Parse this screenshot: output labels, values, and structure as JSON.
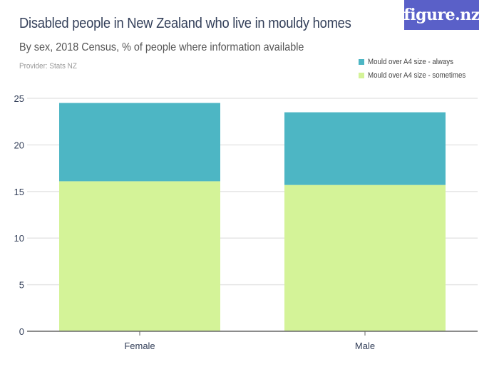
{
  "header": {
    "title": "Disabled people in New Zealand who live in mouldy homes",
    "subtitle": "By sex, 2018 Census, % of people where information available",
    "provider": "Provider: Stats NZ",
    "logo": "figure.nz"
  },
  "legend": [
    {
      "label": "Mould over A4 size - always",
      "color": "#4db6c4"
    },
    {
      "label": "Mould over A4 size - sometimes",
      "color": "#d4f398"
    }
  ],
  "colors": {
    "always": "#4db6c4",
    "sometimes": "#d4f398",
    "logo_bg": "#5a60c8",
    "grid": "#e6e6e6",
    "axis": "#666666",
    "text": "#34405a"
  },
  "chart_data": {
    "type": "bar",
    "stacked": true,
    "title": "Disabled people in New Zealand who live in mouldy homes",
    "subtitle": "By sex, 2018 Census, % of people where information available",
    "categories": [
      "Female",
      "Male"
    ],
    "series": [
      {
        "name": "Mould over A4 size - sometimes",
        "values": [
          16.1,
          15.7
        ]
      },
      {
        "name": "Mould over A4 size - always",
        "values": [
          8.4,
          7.8
        ]
      }
    ],
    "xlabel": "",
    "ylabel": "",
    "ylim": [
      0,
      25
    ],
    "yticks": [
      0,
      5,
      10,
      15,
      20,
      25
    ],
    "grid": true,
    "legend_position": "top-right"
  }
}
